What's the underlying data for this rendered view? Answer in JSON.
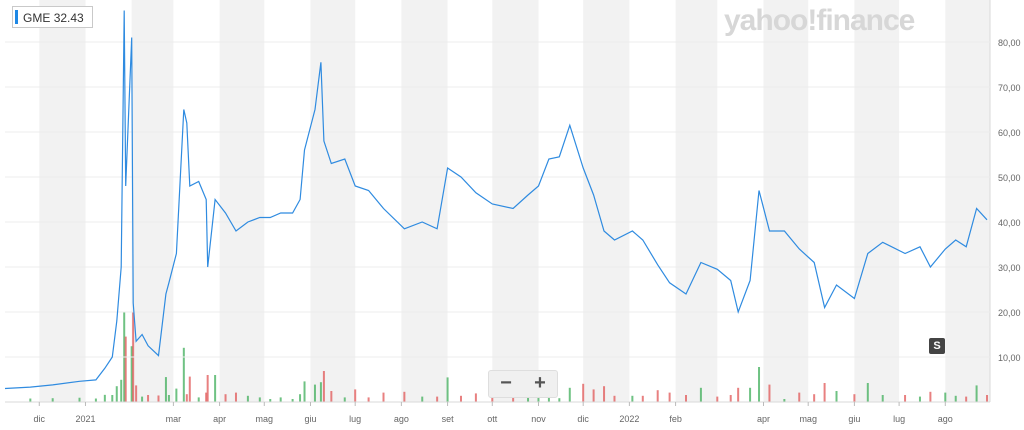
{
  "ticker": {
    "symbol": "GME",
    "price": "32.43"
  },
  "logo": {
    "text": "yahoo!finance"
  },
  "zoom": {
    "minus": "−",
    "plus": "+"
  },
  "badge": {
    "label": "S"
  },
  "chart_data": {
    "type": "line",
    "title": "",
    "xlabel": "",
    "ylabel": "",
    "ylim": [
      0,
      88
    ],
    "y_ticks": [
      "10,00",
      "20,00",
      "30,00",
      "40,00",
      "50,00",
      "60,00",
      "70,00",
      "80,00"
    ],
    "y_tick_values": [
      10,
      20,
      30,
      40,
      50,
      60,
      70,
      80
    ],
    "x_ticks": [
      {
        "label": "dic",
        "d": "2020-12-01"
      },
      {
        "label": "2021",
        "d": "2021-01-01"
      },
      {
        "label": "mar",
        "d": "2021-03-01"
      },
      {
        "label": "apr",
        "d": "2021-04-01"
      },
      {
        "label": "mag",
        "d": "2021-05-01"
      },
      {
        "label": "giu",
        "d": "2021-06-01"
      },
      {
        "label": "lug",
        "d": "2021-07-01"
      },
      {
        "label": "ago",
        "d": "2021-08-01"
      },
      {
        "label": "set",
        "d": "2021-09-01"
      },
      {
        "label": "ott",
        "d": "2021-10-01"
      },
      {
        "label": "nov",
        "d": "2021-11-01"
      },
      {
        "label": "dic",
        "d": "2021-12-01"
      },
      {
        "label": "2022",
        "d": "2022-01-01"
      },
      {
        "label": "feb",
        "d": "2022-02-01"
      },
      {
        "label": "apr",
        "d": "2022-04-01"
      },
      {
        "label": "mag",
        "d": "2022-05-01"
      },
      {
        "label": "giu",
        "d": "2022-06-01"
      },
      {
        "label": "lug",
        "d": "2022-07-01"
      },
      {
        "label": "ago",
        "d": "2022-08-01"
      }
    ],
    "x_range": [
      "2020-11-08",
      "2022-08-31"
    ],
    "grid": "vertical-bands",
    "colors": {
      "line": "#2f8be0",
      "band": "#f2f2f2",
      "volume_up": "#3fae5a",
      "volume_down": "#e05555",
      "axis_text": "#666666"
    },
    "series": [
      {
        "x": [
          "2020-11-08",
          "2020-11-25",
          "2020-12-10",
          "2020-12-28",
          "2021-01-08",
          "2021-01-14",
          "2021-01-19",
          "2021-01-22",
          "2021-01-25",
          "2021-01-27",
          "2021-01-28",
          "2021-02-01",
          "2021-02-02",
          "2021-02-04",
          "2021-02-08",
          "2021-02-12",
          "2021-02-19",
          "2021-02-24",
          "2021-02-26",
          "2021-03-03",
          "2021-03-08",
          "2021-03-10",
          "2021-03-12",
          "2021-03-18",
          "2021-03-23",
          "2021-03-24",
          "2021-03-29",
          "2021-04-05",
          "2021-04-12",
          "2021-04-20",
          "2021-04-28",
          "2021-05-05",
          "2021-05-12",
          "2021-05-20",
          "2021-05-25",
          "2021-05-28",
          "2021-06-04",
          "2021-06-08",
          "2021-06-10",
          "2021-06-15",
          "2021-06-24",
          "2021-07-01",
          "2021-07-10",
          "2021-07-20",
          "2021-08-03",
          "2021-08-15",
          "2021-08-25",
          "2021-09-01",
          "2021-09-10",
          "2021-09-20",
          "2021-10-01",
          "2021-10-15",
          "2021-10-25",
          "2021-11-01",
          "2021-11-08",
          "2021-11-15",
          "2021-11-22",
          "2021-12-01",
          "2021-12-08",
          "2021-12-15",
          "2021-12-22",
          "2022-01-03",
          "2022-01-10",
          "2022-01-20",
          "2022-01-28",
          "2022-02-08",
          "2022-02-18",
          "2022-03-01",
          "2022-03-10",
          "2022-03-15",
          "2022-03-23",
          "2022-03-29",
          "2022-04-05",
          "2022-04-15",
          "2022-04-25",
          "2022-05-05",
          "2022-05-12",
          "2022-05-20",
          "2022-06-01",
          "2022-06-10",
          "2022-06-20",
          "2022-07-05",
          "2022-07-15",
          "2022-07-22",
          "2022-08-01",
          "2022-08-08",
          "2022-08-15",
          "2022-08-22",
          "2022-08-29"
        ],
        "y": [
          3.0,
          3.3,
          3.8,
          4.6,
          4.9,
          7.5,
          10.0,
          18.0,
          30.0,
          87.0,
          48.0,
          81.0,
          22.0,
          13.5,
          15.0,
          12.5,
          10.3,
          24.0,
          26.5,
          33.0,
          65.0,
          62.0,
          48.0,
          49.0,
          45.0,
          30.0,
          45.0,
          42.0,
          38.0,
          40.0,
          41.0,
          41.0,
          42.0,
          42.0,
          45.0,
          56.0,
          65.0,
          75.5,
          58.0,
          53.0,
          54.0,
          48.0,
          47.0,
          43.0,
          38.5,
          40.0,
          38.5,
          52.0,
          50.0,
          46.5,
          44.0,
          43.0,
          46.0,
          48.0,
          54.0,
          54.5,
          61.5,
          52.0,
          46.0,
          38.0,
          36.0,
          38.0,
          36.0,
          30.5,
          26.5,
          24.0,
          31.0,
          29.5,
          27.0,
          20.0,
          27.0,
          47.0,
          38.0,
          38.0,
          34.0,
          31.0,
          21.0,
          26.0,
          23.0,
          33.0,
          35.5,
          33.0,
          34.5,
          30.0,
          34.0,
          36.0,
          34.5,
          43.0,
          40.5
        ]
      }
    ]
  }
}
